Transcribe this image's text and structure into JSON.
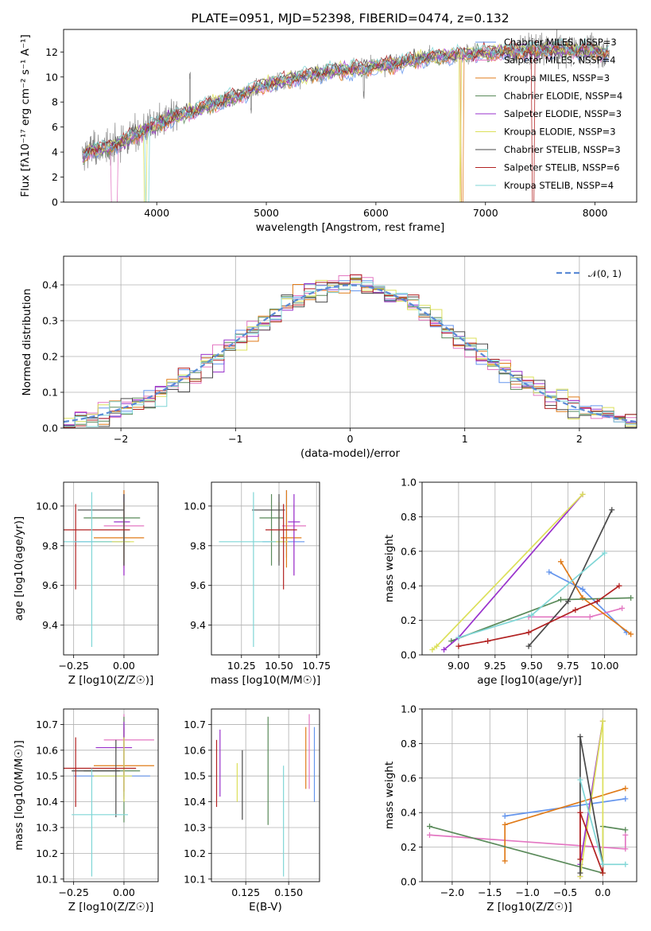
{
  "chart_data": [
    {
      "type": "line",
      "panel": "spectrum",
      "title": "PLATE=0951, MJD=52398, FIBERID=0474, z=0.132",
      "xlabel": "wavelength [Angstrom, rest frame]",
      "ylabel": "Flux [fλ10⁻¹⁷ erg cm⁻² s⁻¹ A⁻¹]",
      "xlim": [
        3150,
        8380
      ],
      "ylim": [
        0,
        13.8
      ],
      "xticks": [
        "4000",
        "5000",
        "6000",
        "7000",
        "8000"
      ],
      "yticks": [
        "0",
        "2",
        "4",
        "6",
        "8",
        "10",
        "12"
      ],
      "legend_position": "top-right",
      "data_color": "#808080",
      "continuum_anchors": [
        [
          3320,
          3.6
        ],
        [
          3400,
          4.2
        ],
        [
          3550,
          4.3
        ],
        [
          3700,
          4.9
        ],
        [
          3900,
          5.8
        ],
        [
          4100,
          6.6
        ],
        [
          4400,
          7.5
        ],
        [
          4700,
          8.4
        ],
        [
          5000,
          9.4
        ],
        [
          5300,
          10.0
        ],
        [
          5600,
          10.5
        ],
        [
          5900,
          10.7
        ],
        [
          6200,
          11.1
        ],
        [
          6500,
          11.6
        ],
        [
          6800,
          11.8
        ],
        [
          7100,
          12.0
        ],
        [
          7400,
          12.1
        ],
        [
          7700,
          12.2
        ],
        [
          8000,
          12.1
        ],
        [
          8130,
          11.8
        ]
      ],
      "series": [
        {
          "name": "Chabrier MILES, NSSP=3",
          "color": "#6495ed"
        },
        {
          "name": "Salpeter MILES, NSSP=4",
          "color": "#e377c2"
        },
        {
          "name": "Kroupa MILES, NSSP=3",
          "color": "#e07b19"
        },
        {
          "name": "Chabrier ELODIE, NSSP=4",
          "color": "#5a8a5a"
        },
        {
          "name": "Salpeter ELODIE, NSSP=3",
          "color": "#9932cc"
        },
        {
          "name": "Kroupa ELODIE, NSSP=3",
          "color": "#dce05a"
        },
        {
          "name": "Chabrier STELIB, NSSP=3",
          "color": "#4a4a4a"
        },
        {
          "name": "Salpeter STELIB, NSSP=6",
          "color": "#b22222"
        },
        {
          "name": "Kroupa STELIB, NSSP=4",
          "color": "#7fd6d6"
        }
      ]
    },
    {
      "type": "histogram",
      "panel": "residuals",
      "xlabel": "(data-model)/error",
      "ylabel": "Normed distribution",
      "xlim": [
        -2.5,
        2.5
      ],
      "ylim": [
        0,
        0.48
      ],
      "xticks": [
        "−2",
        "−1",
        "0",
        "1",
        "2"
      ],
      "yticks": [
        "0.0",
        "0.1",
        "0.2",
        "0.3",
        "0.4"
      ],
      "grid": true,
      "reference_curve": {
        "name": "𝒩(0, 1)",
        "color": "#5b8bd6",
        "style": "dashed"
      },
      "legend_position": "top-right"
    },
    {
      "type": "scatter",
      "panel": "age-Z",
      "xlabel": "Z [log10(Z/Z☉)]",
      "ylabel": "age  [log10(age/yr)]",
      "xlim": [
        -0.3,
        0.17
      ],
      "ylim": [
        9.25,
        10.12
      ],
      "xticks": [
        "−0.25",
        "0.00"
      ],
      "yticks": [
        "9.4",
        "9.6",
        "9.8",
        "10.0"
      ],
      "grid": true,
      "points": [
        {
          "x": 0.0,
          "y": 9.82,
          "xerr": [
            0.25,
            0.03
          ],
          "yerr": [
            0.08,
            0.26
          ],
          "color": "#6495ed"
        },
        {
          "x": 0.0,
          "y": 9.9,
          "xerr": [
            0.1,
            0.1
          ],
          "yerr": [
            0.25,
            0.11
          ],
          "color": "#e377c2"
        },
        {
          "x": 0.0,
          "y": 9.84,
          "xerr": [
            0.15,
            0.1
          ],
          "yerr": [
            0.15,
            0.24
          ],
          "color": "#e07b19"
        },
        {
          "x": 0.0,
          "y": 9.94,
          "xerr": [
            0.2,
            0.08
          ],
          "yerr": [
            0.24,
            0.12
          ],
          "color": "#5a8a5a"
        },
        {
          "x": 0.0,
          "y": 9.92,
          "xerr": [
            0.05,
            0.03
          ],
          "yerr": [
            0.27,
            0.14
          ],
          "color": "#9932cc"
        },
        {
          "x": 0.0,
          "y": 9.82,
          "xerr": [
            0.15,
            0.05
          ],
          "yerr": [
            0.1,
            0.2
          ],
          "color": "#dce05a"
        },
        {
          "x": 0.0,
          "y": 9.98,
          "xerr": [
            0.23,
            0.0
          ],
          "yerr": [
            0.28,
            0.08
          ],
          "color": "#4a4a4a"
        },
        {
          "x": -0.24,
          "y": 9.88,
          "xerr": [
            0.06,
            0.27
          ],
          "yerr": [
            0.3,
            0.13
          ],
          "color": "#b22222"
        },
        {
          "x": -0.16,
          "y": 9.82,
          "xerr": [
            0.14,
            0.1
          ],
          "yerr": [
            0.53,
            0.25
          ],
          "color": "#7fd6d6"
        }
      ]
    },
    {
      "type": "scatter",
      "panel": "age-mass",
      "xlabel": "mass [log10(M/M☉)]",
      "xlim": [
        10.05,
        10.77
      ],
      "ylim": [
        9.25,
        10.12
      ],
      "xticks": [
        "10.25",
        "10.50",
        "10.75"
      ],
      "yticks": [
        "9.4",
        "9.6",
        "9.8",
        "10.0"
      ],
      "grid": true,
      "points": [
        {
          "x": 10.55,
          "y": 9.82,
          "xerr": [
            0.16,
            0.12
          ],
          "yerr": [
            0.08,
            0.26
          ],
          "color": "#6495ed"
        },
        {
          "x": 10.6,
          "y": 9.9,
          "xerr": [
            0.08,
            0.08
          ],
          "yerr": [
            0.25,
            0.11
          ],
          "color": "#e377c2"
        },
        {
          "x": 10.55,
          "y": 9.84,
          "xerr": [
            0.04,
            0.1
          ],
          "yerr": [
            0.15,
            0.24
          ],
          "color": "#e07b19"
        },
        {
          "x": 10.45,
          "y": 9.94,
          "xerr": [
            0.08,
            0.08
          ],
          "yerr": [
            0.24,
            0.12
          ],
          "color": "#5a8a5a"
        },
        {
          "x": 10.6,
          "y": 9.92,
          "xerr": [
            0.04,
            0.04
          ],
          "yerr": [
            0.27,
            0.14
          ],
          "color": "#9932cc"
        },
        {
          "x": 10.5,
          "y": 9.82,
          "xerr": [
            0.06,
            0.06
          ],
          "yerr": [
            0.1,
            0.2
          ],
          "color": "#dce05a"
        },
        {
          "x": 10.5,
          "y": 9.98,
          "xerr": [
            0.18,
            0.04
          ],
          "yerr": [
            0.28,
            0.08
          ],
          "color": "#4a4a4a"
        },
        {
          "x": 10.53,
          "y": 9.88,
          "xerr": [
            0.12,
            0.09
          ],
          "yerr": [
            0.3,
            0.13
          ],
          "color": "#b22222"
        },
        {
          "x": 10.33,
          "y": 9.82,
          "xerr": [
            0.23,
            0.15
          ],
          "yerr": [
            0.53,
            0.25
          ],
          "color": "#7fd6d6"
        }
      ]
    },
    {
      "type": "line",
      "panel": "mass-weight-vs-age",
      "xlabel": "age  [log10(age/yr)]",
      "ylabel": "mass weight",
      "xlim": [
        8.75,
        10.22
      ],
      "ylim": [
        0,
        1.0
      ],
      "xticks": [
        "9.00",
        "9.25",
        "9.50",
        "9.75",
        "10.00"
      ],
      "yticks": [
        "0.0",
        "0.2",
        "0.4",
        "0.6",
        "0.8",
        "1.0"
      ],
      "grid": true,
      "series": [
        {
          "color": "#6495ed",
          "points": [
            [
              9.62,
              0.48
            ],
            [
              9.85,
              0.38
            ],
            [
              10.15,
              0.13
            ]
          ]
        },
        {
          "color": "#e377c2",
          "points": [
            [
              9.48,
              0.22
            ],
            [
              9.9,
              0.22
            ],
            [
              10.12,
              0.27
            ]
          ]
        },
        {
          "color": "#e07b19",
          "points": [
            [
              9.7,
              0.54
            ],
            [
              9.85,
              0.33
            ],
            [
              10.18,
              0.12
            ]
          ]
        },
        {
          "color": "#5a8a5a",
          "points": [
            [
              8.95,
              0.08
            ],
            [
              9.7,
              0.32
            ],
            [
              10.18,
              0.33
            ]
          ]
        },
        {
          "color": "#9932cc",
          "points": [
            [
              8.9,
              0.03
            ],
            [
              9.0,
              0.1
            ],
            [
              9.85,
              0.93
            ]
          ]
        },
        {
          "color": "#dce05a",
          "points": [
            [
              8.82,
              0.03
            ],
            [
              8.85,
              0.05
            ],
            [
              9.85,
              0.93
            ]
          ]
        },
        {
          "color": "#4a4a4a",
          "points": [
            [
              9.48,
              0.05
            ],
            [
              9.75,
              0.31
            ],
            [
              10.05,
              0.84
            ]
          ]
        },
        {
          "color": "#b22222",
          "points": [
            [
              9.0,
              0.05
            ],
            [
              9.2,
              0.08
            ],
            [
              9.48,
              0.13
            ],
            [
              9.8,
              0.26
            ],
            [
              9.95,
              0.31
            ],
            [
              10.1,
              0.4
            ]
          ]
        },
        {
          "color": "#7fd6d6",
          "points": [
            [
              9.0,
              0.1
            ],
            [
              9.5,
              0.23
            ],
            [
              10.0,
              0.59
            ]
          ]
        }
      ]
    },
    {
      "type": "scatter",
      "panel": "mass-Z",
      "xlabel": "Z [log10(Z/Z☉)]",
      "ylabel": "mass [log10(M/M☉)]",
      "xlim": [
        -0.3,
        0.17
      ],
      "ylim": [
        10.09,
        10.76
      ],
      "xticks": [
        "−0.25",
        "0.00"
      ],
      "yticks": [
        "10.1",
        "10.2",
        "10.3",
        "10.4",
        "10.5",
        "10.6",
        "10.7"
      ],
      "grid": true,
      "points": [
        {
          "x": 0.0,
          "y": 10.5,
          "xerr": [
            0.25,
            0.13
          ],
          "yerr": [
            0.08,
            0.2
          ],
          "color": "#6495ed"
        },
        {
          "x": 0.0,
          "y": 10.64,
          "xerr": [
            0.1,
            0.15
          ],
          "yerr": [
            0.2,
            0.1
          ],
          "color": "#e377c2"
        },
        {
          "x": 0.0,
          "y": 10.54,
          "xerr": [
            0.15,
            0.15
          ],
          "yerr": [
            0.1,
            0.15
          ],
          "color": "#e07b19"
        },
        {
          "x": 0.0,
          "y": 10.52,
          "xerr": [
            0.2,
            0.08
          ],
          "yerr": [
            0.2,
            0.21
          ],
          "color": "#5a8a5a"
        },
        {
          "x": 0.0,
          "y": 10.61,
          "xerr": [
            0.14,
            0.04
          ],
          "yerr": [
            0.2,
            0.1
          ],
          "color": "#9932cc"
        },
        {
          "x": 0.0,
          "y": 10.5,
          "xerr": [
            0.15,
            0.04
          ],
          "yerr": [
            0.1,
            0.15
          ],
          "color": "#dce05a"
        },
        {
          "x": -0.04,
          "y": 10.52,
          "xerr": [
            0.22,
            0.02
          ],
          "yerr": [
            0.18,
            0.12
          ],
          "color": "#4a4a4a"
        },
        {
          "x": -0.24,
          "y": 10.53,
          "xerr": [
            0.06,
            0.3
          ],
          "yerr": [
            0.15,
            0.12
          ],
          "color": "#b22222"
        },
        {
          "x": -0.16,
          "y": 10.35,
          "xerr": [
            0.1,
            0.18
          ],
          "yerr": [
            0.24,
            0.18
          ],
          "color": "#7fd6d6"
        }
      ]
    },
    {
      "type": "scatter",
      "panel": "mass-EBV",
      "xlabel": "E(B-V)",
      "xlim": [
        0.105,
        0.168
      ],
      "ylim": [
        10.09,
        10.76
      ],
      "xticks": [
        "0.125",
        "0.150"
      ],
      "yticks": [
        "10.1",
        "10.2",
        "10.3",
        "10.4",
        "10.5",
        "10.6",
        "10.7"
      ],
      "grid": true,
      "points": [
        {
          "x": 0.165,
          "y": 10.55,
          "yerr": [
            0.15,
            0.14
          ],
          "color": "#6495ed"
        },
        {
          "x": 0.162,
          "y": 10.6,
          "yerr": [
            0.15,
            0.14
          ],
          "color": "#e377c2"
        },
        {
          "x": 0.16,
          "y": 10.52,
          "yerr": [
            0.07,
            0.17
          ],
          "color": "#e07b19"
        },
        {
          "x": 0.138,
          "y": 10.52,
          "yerr": [
            0.21,
            0.21
          ],
          "color": "#5a8a5a"
        },
        {
          "x": 0.11,
          "y": 10.54,
          "yerr": [
            0.12,
            0.14
          ],
          "color": "#9932cc"
        },
        {
          "x": 0.12,
          "y": 10.46,
          "yerr": [
            0.06,
            0.09
          ],
          "color": "#dce05a"
        },
        {
          "x": 0.123,
          "y": 10.5,
          "yerr": [
            0.17,
            0.1
          ],
          "color": "#4a4a4a"
        },
        {
          "x": 0.108,
          "y": 10.52,
          "yerr": [
            0.14,
            0.12
          ],
          "color": "#b22222"
        },
        {
          "x": 0.147,
          "y": 10.35,
          "yerr": [
            0.24,
            0.19
          ],
          "color": "#7fd6d6"
        }
      ]
    },
    {
      "type": "line",
      "panel": "mass-weight-vs-Z",
      "xlabel": "Z [log10(Z/Z☉)]",
      "ylabel": "mass weight",
      "xlim": [
        -2.4,
        0.45
      ],
      "ylim": [
        0,
        1.0
      ],
      "xticks": [
        "−2.0",
        "−1.5",
        "−1.0",
        "−0.5",
        "0.0"
      ],
      "yticks": [
        "0.0",
        "0.2",
        "0.4",
        "0.6",
        "0.8",
        "1.0"
      ],
      "grid": true,
      "series": [
        {
          "color": "#6495ed",
          "points": [
            [
              -1.3,
              0.38
            ],
            [
              0.3,
              0.48
            ]
          ]
        },
        {
          "color": "#e377c2",
          "points": [
            [
              -2.3,
              0.27
            ],
            [
              0.3,
              0.19
            ],
            [
              0.3,
              0.27
            ]
          ]
        },
        {
          "color": "#e07b19",
          "points": [
            [
              -1.3,
              0.12
            ],
            [
              -1.3,
              0.33
            ],
            [
              0.3,
              0.54
            ]
          ]
        },
        {
          "color": "#5a8a5a",
          "points": [
            [
              -2.3,
              0.32
            ],
            [
              0.0,
              0.05
            ],
            [
              0.0,
              0.32
            ],
            [
              0.3,
              0.3
            ]
          ]
        },
        {
          "color": "#9932cc",
          "points": [
            [
              -0.3,
              0.03
            ],
            [
              -0.3,
              0.1
            ],
            [
              0.0,
              0.93
            ]
          ]
        },
        {
          "color": "#dce05a",
          "points": [
            [
              -0.3,
              0.03
            ],
            [
              0.0,
              0.93
            ],
            [
              0.0,
              0.05
            ]
          ]
        },
        {
          "color": "#4a4a4a",
          "points": [
            [
              -0.3,
              0.05
            ],
            [
              -0.3,
              0.84
            ],
            [
              0.0,
              0.1
            ]
          ]
        },
        {
          "color": "#b22222",
          "points": [
            [
              -0.3,
              0.13
            ],
            [
              -0.3,
              0.4
            ],
            [
              0.0,
              0.05
            ],
            [
              0.0,
              0.1
            ]
          ]
        },
        {
          "color": "#7fd6d6",
          "points": [
            [
              -0.3,
              0.59
            ],
            [
              0.0,
              0.1
            ],
            [
              0.3,
              0.1
            ]
          ]
        }
      ]
    }
  ]
}
